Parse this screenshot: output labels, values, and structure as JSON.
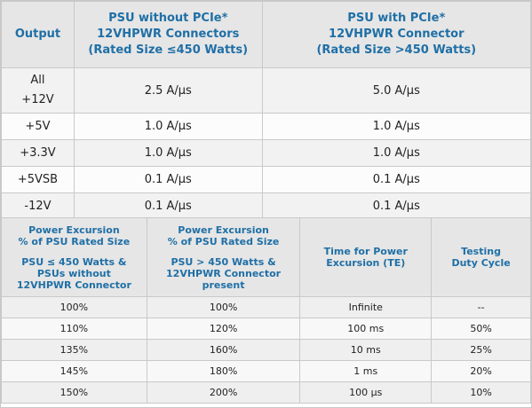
{
  "table1": {
    "headers": {
      "output": "Output",
      "col_without": [
        "PSU without PCIe*",
        "12VHPWR Connectors",
        "(Rated Size ≤450 Watts)"
      ],
      "col_with": [
        "PSU with PCIe*",
        "12VHPWR Connector",
        "(Rated Size >450 Watts)"
      ]
    },
    "rows": [
      {
        "output": [
          "All",
          "+12V"
        ],
        "without": "2.5 A/μs",
        "with": "5.0 A/μs"
      },
      {
        "output": [
          "+5V"
        ],
        "without": "1.0 A/μs",
        "with": "1.0 A/μs"
      },
      {
        "output": [
          "+3.3V"
        ],
        "without": "1.0 A/μs",
        "with": "1.0 A/μs"
      },
      {
        "output": [
          "+5VSB"
        ],
        "without": "0.1 A/μs",
        "with": "0.1 A/μs"
      },
      {
        "output": [
          "-12V"
        ],
        "without": "0.1 A/μs",
        "with": "0.1 A/μs"
      }
    ]
  },
  "table2": {
    "headers": {
      "col1_top": [
        "Power Excursion",
        "% of PSU Rated Size"
      ],
      "col1_bottom": [
        "PSU ≤ 450 Watts &",
        "PSUs without",
        "12VHPWR Connector"
      ],
      "col2_top": [
        "Power Excursion",
        "% of PSU Rated Size"
      ],
      "col2_bottom": [
        "PSU > 450 Watts &",
        "12VHPWR Connector",
        "present"
      ],
      "col3": [
        "Time for Power",
        "Excursion (TE)"
      ],
      "col4": [
        "Testing",
        "Duty Cycle"
      ]
    },
    "rows": [
      [
        "100%",
        "100%",
        "Infinite",
        "--"
      ],
      [
        "110%",
        "120%",
        "100 ms",
        "50%"
      ],
      [
        "135%",
        "160%",
        "10 ms",
        "25%"
      ],
      [
        "145%",
        "180%",
        "1 ms",
        "20%"
      ],
      [
        "150%",
        "200%",
        "100 μs",
        "10%"
      ]
    ]
  }
}
